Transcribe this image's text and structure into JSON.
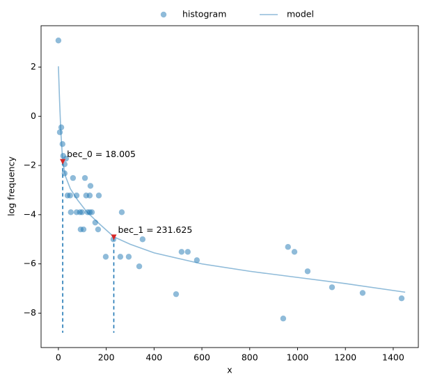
{
  "chart_data": {
    "type": "scatter",
    "x_label": "x",
    "y_label": "log frequency",
    "xlim": [
      -72.5,
      1505
    ],
    "ylim": [
      -9.4,
      3.68
    ],
    "xticks": [
      0,
      200,
      400,
      600,
      800,
      1000,
      1200,
      1400
    ],
    "yticks": [
      {
        "value": -8,
        "label": "−8"
      },
      {
        "value": -6,
        "label": "−6"
      },
      {
        "value": -4,
        "label": "−4"
      },
      {
        "value": -2,
        "label": "−2"
      },
      0,
      2
    ],
    "legend": "upper center",
    "series": [
      {
        "name": "histogram",
        "kind": "points",
        "color": "#1f77b4",
        "x": [
          0,
          6,
          12,
          17,
          20,
          26,
          32,
          26,
          38,
          49,
          52,
          61,
          76,
          76,
          90,
          93,
          99,
          105,
          111,
          116,
          122,
          131,
          131,
          134,
          140,
          154,
          166,
          169,
          198,
          230,
          259,
          265,
          294,
          338,
          352,
          492,
          515,
          541,
          579,
          940,
          960,
          987,
          1042,
          1144,
          1272,
          1435
        ],
        "values": [
          3.08,
          -0.65,
          -0.45,
          -1.13,
          -1.61,
          -1.95,
          -1.72,
          -2.32,
          -3.22,
          -3.22,
          -3.9,
          -2.51,
          -3.22,
          -3.9,
          -3.9,
          -4.6,
          -3.9,
          -4.6,
          -2.51,
          -3.22,
          -3.9,
          -3.9,
          -3.22,
          -2.83,
          -3.9,
          -4.32,
          -4.6,
          -3.22,
          -5.71,
          -5.0,
          -5.71,
          -3.9,
          -5.71,
          -6.1,
          -5.0,
          -7.23,
          -5.51,
          -5.51,
          -5.85,
          -8.22,
          -5.31,
          -5.51,
          -6.3,
          -6.95,
          -7.18,
          -7.4
        ]
      },
      {
        "name": "model",
        "kind": "line",
        "color": "#1f77b4",
        "x": [
          0,
          5,
          10,
          18,
          30,
          50,
          80,
          120,
          180,
          231.6,
          300,
          400,
          600,
          800,
          1000,
          1200,
          1450
        ],
        "values": [
          2.03,
          0.6,
          -0.6,
          -1.85,
          -2.45,
          -2.95,
          -3.4,
          -3.9,
          -4.45,
          -4.9,
          -5.2,
          -5.55,
          -6.0,
          -6.3,
          -6.55,
          -6.8,
          -7.15
        ]
      }
    ],
    "markers": {
      "color": "#d62728",
      "line_color": "#1f77b4",
      "line_bottom": -8.8,
      "x": [
        18.005,
        231.625
      ],
      "values": [
        -1.85,
        -4.92
      ],
      "labels": [
        "bec_0 = 18.005",
        "bec_1 = 231.625"
      ]
    }
  }
}
